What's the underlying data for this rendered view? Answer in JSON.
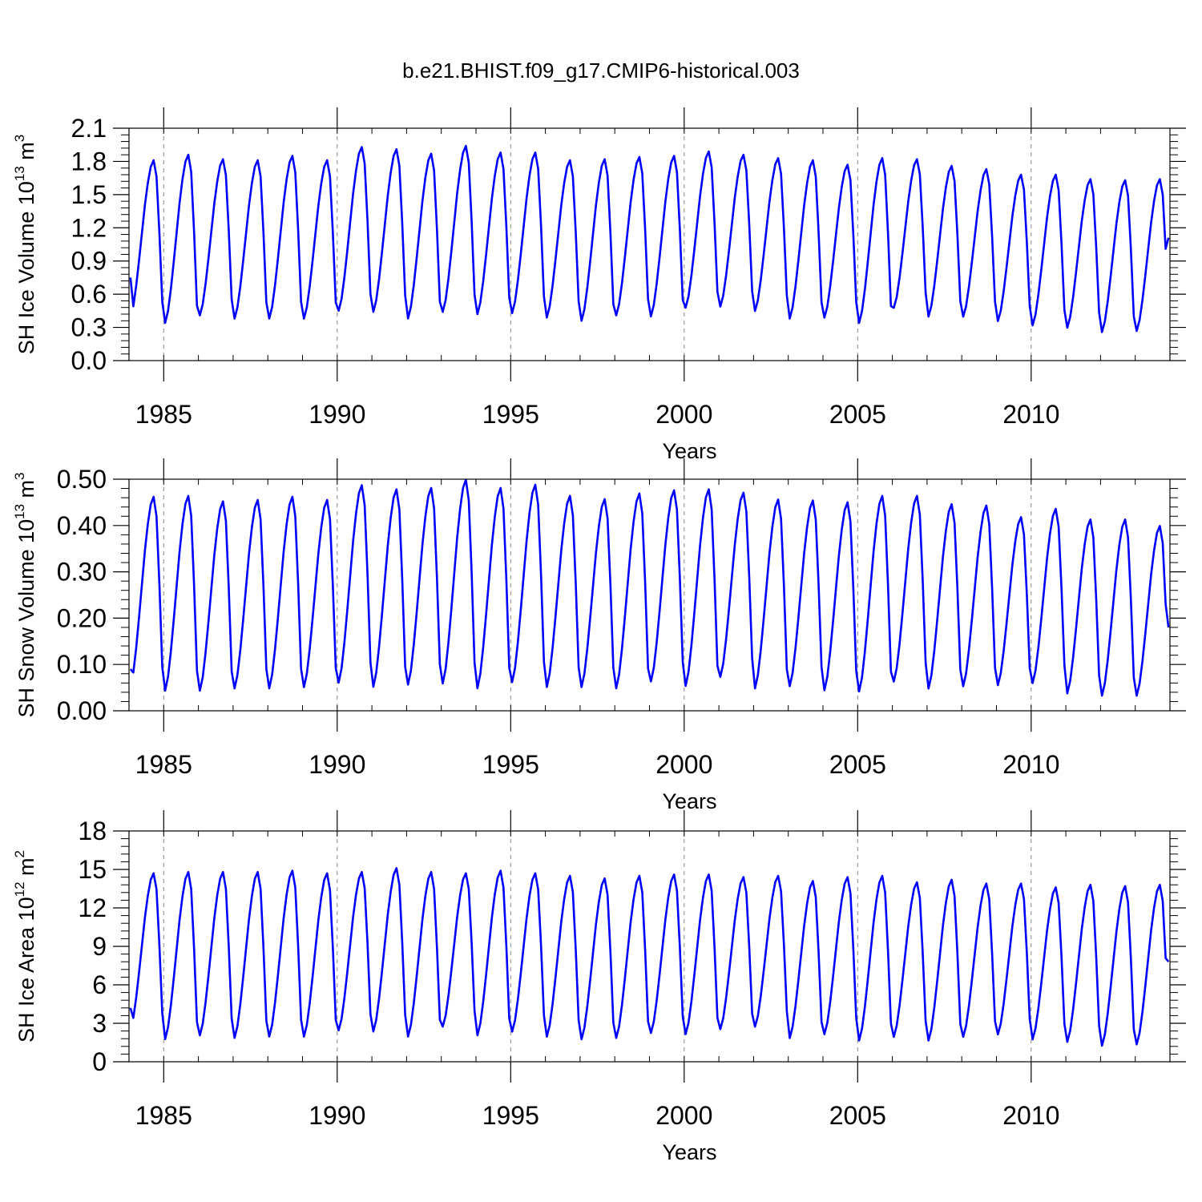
{
  "figure_title": "b.e21.BHIST.f09_g17.CMIP6-historical.003",
  "colors": {
    "series": "#0000ff",
    "axis": "#000000",
    "grid": "#888888"
  },
  "chart_data": [
    {
      "type": "line",
      "ylabel": "SH Ice Volume 10",
      "ylabel_exp": "13",
      "ylabel_unit": " m",
      "ylabel_unit_exp": "3",
      "xlabel": "Years",
      "xlim": [
        1984.0,
        2014.0
      ],
      "ylim": [
        0.0,
        2.1
      ],
      "xticks": [
        1985,
        1990,
        1995,
        2000,
        2005,
        2010
      ],
      "xtick_labels": [
        "1985",
        "1990",
        "1995",
        "2000",
        "2005",
        "2010"
      ],
      "yticks": [
        0.0,
        0.3,
        0.6,
        0.9,
        1.2,
        1.5,
        1.8,
        2.1
      ],
      "ytick_labels": [
        "0.0",
        "0.3",
        "0.6",
        "0.9",
        "1.2",
        "1.5",
        "1.8",
        "2.1"
      ],
      "vgrid_years": [
        1985,
        1990,
        1995,
        2000,
        2005,
        2010
      ],
      "series_name": "SH Ice Volume",
      "start_value": 0.75,
      "end_value": 1.11,
      "annual_max": [
        1.81,
        1.86,
        1.82,
        1.81,
        1.85,
        1.81,
        1.93,
        1.91,
        1.87,
        1.94,
        1.88,
        1.88,
        1.81,
        1.82,
        1.84,
        1.85,
        1.89,
        1.86,
        1.83,
        1.81,
        1.77,
        1.83,
        1.82,
        1.76,
        1.73,
        1.68,
        1.68,
        1.64,
        1.63,
        1.64
      ],
      "annual_min": [
        0.36,
        0.31,
        0.38,
        0.35,
        0.35,
        0.35,
        0.42,
        0.41,
        0.35,
        0.41,
        0.39,
        0.4,
        0.36,
        0.33,
        0.38,
        0.37,
        0.45,
        0.46,
        0.42,
        0.35,
        0.36,
        0.31,
        0.45,
        0.37,
        0.37,
        0.33,
        0.29,
        0.27,
        0.23,
        0.24
      ]
    },
    {
      "type": "line",
      "ylabel": "SH Snow Volume 10",
      "ylabel_exp": "13",
      "ylabel_unit": " m",
      "ylabel_unit_exp": "3",
      "xlabel": "Years",
      "xlim": [
        1984.0,
        2014.0
      ],
      "ylim": [
        0.0,
        0.5
      ],
      "xticks": [
        1985,
        1990,
        1995,
        2000,
        2005,
        2010
      ],
      "xtick_labels": [
        "1985",
        "1990",
        "1995",
        "2000",
        "2005",
        "2010"
      ],
      "yticks": [
        0.0,
        0.1,
        0.2,
        0.3,
        0.4,
        0.5
      ],
      "ytick_labels": [
        "0.00",
        "0.10",
        "0.20",
        "0.30",
        "0.40",
        "0.50"
      ],
      "vgrid_years": [
        1985,
        1990,
        1995,
        2000,
        2005,
        2010
      ],
      "series_name": "SH Snow Volume",
      "start_value": 0.09,
      "end_value": 0.18,
      "annual_max": [
        0.462,
        0.464,
        0.452,
        0.455,
        0.462,
        0.455,
        0.487,
        0.478,
        0.481,
        0.499,
        0.481,
        0.488,
        0.464,
        0.457,
        0.469,
        0.476,
        0.478,
        0.471,
        0.456,
        0.454,
        0.45,
        0.464,
        0.464,
        0.446,
        0.443,
        0.418,
        0.436,
        0.413,
        0.413,
        0.399
      ],
      "annual_min": [
        0.045,
        0.035,
        0.035,
        0.04,
        0.04,
        0.043,
        0.052,
        0.043,
        0.048,
        0.05,
        0.04,
        0.053,
        0.043,
        0.043,
        0.04,
        0.055,
        0.045,
        0.065,
        0.04,
        0.045,
        0.036,
        0.033,
        0.055,
        0.04,
        0.045,
        0.048,
        0.052,
        0.03,
        0.025,
        0.025
      ]
    },
    {
      "type": "line",
      "ylabel": "SH Ice Area 10",
      "ylabel_exp": "12",
      "ylabel_unit": " m",
      "ylabel_unit_exp": "2",
      "xlabel": "Years",
      "xlim": [
        1984.0,
        2014.0
      ],
      "ylim": [
        0,
        18
      ],
      "xticks": [
        1985,
        1990,
        1995,
        2000,
        2005,
        2010
      ],
      "xtick_labels": [
        "1985",
        "1990",
        "1995",
        "2000",
        "2005",
        "2010"
      ],
      "yticks": [
        0,
        3,
        6,
        9,
        12,
        15,
        18
      ],
      "ytick_labels": [
        "0",
        "3",
        "6",
        "9",
        "12",
        "15",
        "18"
      ],
      "vgrid_years": [
        1985,
        1990,
        1995,
        2000,
        2005,
        2010
      ],
      "series_name": "SH Ice Area",
      "start_value": 4.2,
      "end_value": 7.8,
      "annual_max": [
        14.7,
        14.8,
        14.8,
        14.8,
        14.9,
        14.7,
        14.8,
        15.1,
        14.8,
        14.7,
        14.9,
        14.7,
        14.5,
        14.3,
        14.5,
        14.6,
        14.6,
        14.4,
        14.5,
        14.1,
        14.4,
        14.5,
        14.0,
        14.2,
        13.9,
        13.9,
        13.6,
        13.8,
        13.7,
        13.8
      ],
      "annual_min": [
        2.3,
        1.5,
        1.8,
        1.6,
        1.7,
        1.7,
        2.2,
        2.1,
        1.7,
        2.5,
        1.8,
        2.1,
        1.7,
        1.5,
        1.6,
        2.0,
        1.9,
        2.3,
        2.5,
        1.6,
        1.9,
        1.4,
        1.7,
        1.4,
        1.7,
        1.9,
        1.5,
        1.3,
        1.0,
        1.1
      ]
    }
  ]
}
